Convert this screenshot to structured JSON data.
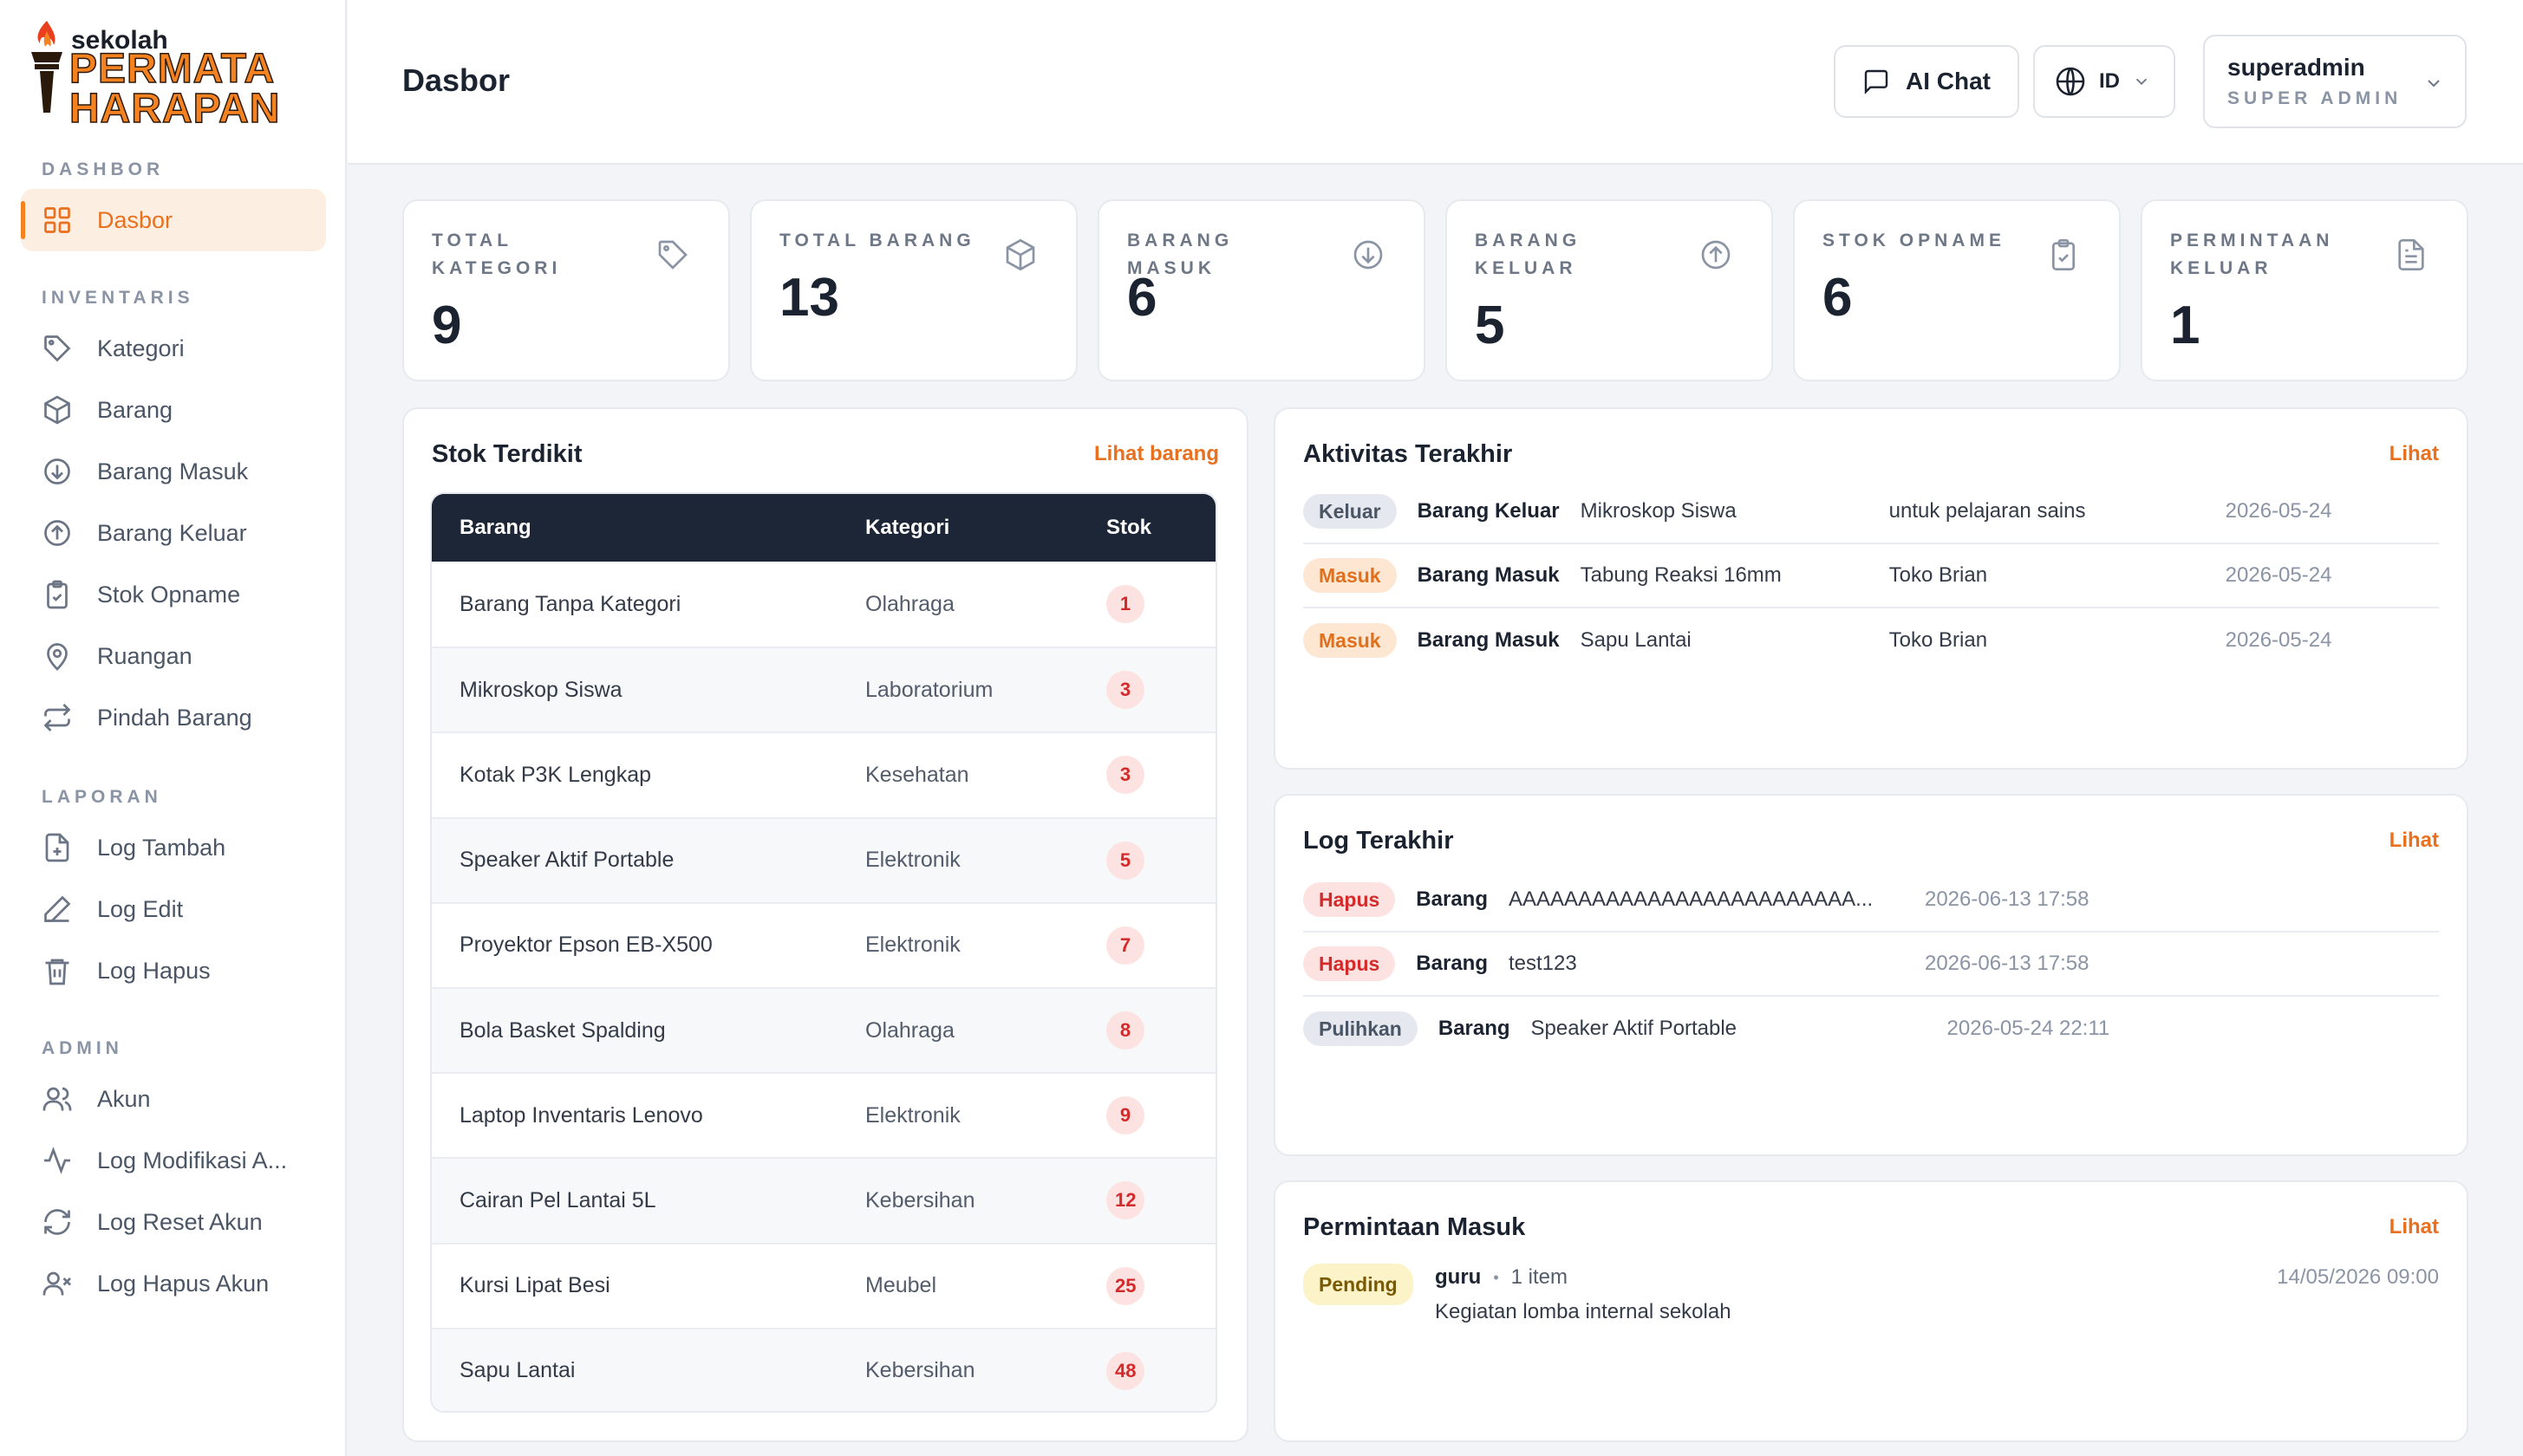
{
  "brand": {
    "line1": "sekolah",
    "line2": "PERMATA",
    "line3": "HARAPAN"
  },
  "sidebar": {
    "sections": {
      "dashbor": "DASHBOR",
      "inventaris": "INVENTARIS",
      "laporan": "LAPORAN",
      "admin": "ADMIN"
    },
    "items": [
      {
        "label": "Dasbor",
        "icon": "grid-icon",
        "active": true
      },
      {
        "label": "Kategori",
        "icon": "tag-icon"
      },
      {
        "label": "Barang",
        "icon": "box-icon"
      },
      {
        "label": "Barang Masuk",
        "icon": "arrow-down-circle-icon"
      },
      {
        "label": "Barang Keluar",
        "icon": "arrow-up-circle-icon"
      },
      {
        "label": "Stok Opname",
        "icon": "clipboard-check-icon"
      },
      {
        "label": "Ruangan",
        "icon": "map-pin-icon"
      },
      {
        "label": "Pindah Barang",
        "icon": "repeat-icon"
      },
      {
        "label": "Log Tambah",
        "icon": "file-plus-icon"
      },
      {
        "label": "Log Edit",
        "icon": "pen-icon"
      },
      {
        "label": "Log Hapus",
        "icon": "trash-icon"
      },
      {
        "label": "Akun",
        "icon": "users-icon"
      },
      {
        "label": "Log Modifikasi A...",
        "icon": "activity-icon"
      },
      {
        "label": "Log Reset Akun",
        "icon": "refresh-icon"
      },
      {
        "label": "Log Hapus Akun",
        "icon": "user-x-icon"
      }
    ]
  },
  "header": {
    "title": "Dasbor",
    "ai_chat": "AI Chat",
    "lang": "ID",
    "user_name": "superadmin",
    "user_role": "SUPER ADMIN"
  },
  "stats": [
    {
      "label": "TOTAL KATEGORI",
      "value": "9",
      "icon": "tag-icon"
    },
    {
      "label": "TOTAL BARANG",
      "value": "13",
      "icon": "box-icon"
    },
    {
      "label": "BARANG MASUK",
      "value": "6",
      "icon": "arrow-down-circle-icon"
    },
    {
      "label": "BARANG KELUAR",
      "value": "5",
      "icon": "arrow-up-circle-icon"
    },
    {
      "label": "STOK OPNAME",
      "value": "6",
      "icon": "clipboard-check-icon"
    },
    {
      "label": "PERMINTAAN KELUAR",
      "value": "1",
      "icon": "file-text-icon"
    }
  ],
  "low_stock": {
    "title": "Stok Terdikit",
    "link": "Lihat barang",
    "columns": [
      "Barang",
      "Kategori",
      "Stok"
    ],
    "rows": [
      {
        "name": "Barang Tanpa Kategori",
        "category": "Olahraga",
        "stock": "1"
      },
      {
        "name": "Mikroskop Siswa",
        "category": "Laboratorium",
        "stock": "3"
      },
      {
        "name": "Kotak P3K Lengkap",
        "category": "Kesehatan",
        "stock": "3"
      },
      {
        "name": "Speaker Aktif Portable",
        "category": "Elektronik",
        "stock": "5"
      },
      {
        "name": "Proyektor Epson EB-X500",
        "category": "Elektronik",
        "stock": "7"
      },
      {
        "name": "Bola Basket Spalding",
        "category": "Olahraga",
        "stock": "8"
      },
      {
        "name": "Laptop Inventaris Lenovo",
        "category": "Elektronik",
        "stock": "9"
      },
      {
        "name": "Cairan Pel Lantai 5L",
        "category": "Kebersihan",
        "stock": "12"
      },
      {
        "name": "Kursi Lipat Besi",
        "category": "Meubel",
        "stock": "25"
      },
      {
        "name": "Sapu Lantai",
        "category": "Kebersihan",
        "stock": "48"
      }
    ]
  },
  "activity": {
    "title": "Aktivitas Terakhir",
    "link": "Lihat",
    "rows": [
      {
        "badge": "Keluar",
        "type": "Barang Keluar",
        "item": "Mikroskop Siswa",
        "note": "untuk pelajaran sains",
        "date": "2026-05-24"
      },
      {
        "badge": "Masuk",
        "type": "Barang Masuk",
        "item": "Tabung Reaksi 16mm",
        "note": "Toko Brian",
        "date": "2026-05-24"
      },
      {
        "badge": "Masuk",
        "type": "Barang Masuk",
        "item": "Sapu Lantai",
        "note": "Toko Brian",
        "date": "2026-05-24"
      }
    ]
  },
  "logs": {
    "title": "Log Terakhir",
    "link": "Lihat",
    "rows": [
      {
        "badge": "Hapus",
        "type": "Barang",
        "item": "AAAAAAAAAAAAAAAAAAAAAAAAA...",
        "date": "2026-06-13 17:58"
      },
      {
        "badge": "Hapus",
        "type": "Barang",
        "item": "test123",
        "date": "2026-06-13 17:58"
      },
      {
        "badge": "Pulihkan",
        "type": "Barang",
        "item": "Speaker Aktif Portable",
        "date": "2026-05-24 22:11"
      }
    ]
  },
  "requests": {
    "title": "Permintaan Masuk",
    "link": "Lihat",
    "badge": "Pending",
    "user": "guru",
    "dot": "•",
    "count": "1 item",
    "desc": "Kegiatan lomba internal sekolah",
    "date": "14/05/2026 09:00"
  },
  "colors": {
    "accent": "#f58220",
    "dark": "#1d2636",
    "danger": "#d42a2a"
  }
}
